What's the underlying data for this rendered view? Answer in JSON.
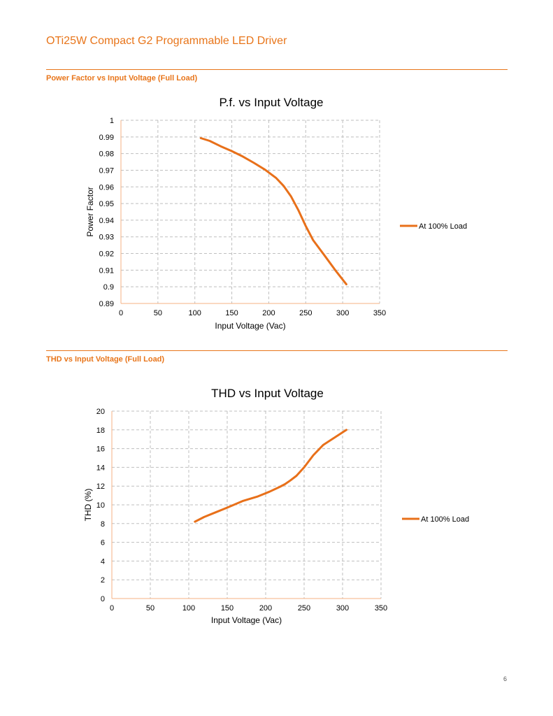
{
  "header": {
    "title": "OTi25W Compact G2 Programmable LED Driver"
  },
  "sections": [
    {
      "title": "Power Factor vs Input Voltage (Full Load)"
    },
    {
      "title": "THD vs Input Voltage (Full Load)"
    }
  ],
  "colors": {
    "accent": "#E8751A",
    "series": "#E8701A",
    "grid": "#BFBFBF",
    "axis": "#F4B183"
  },
  "chart_data": [
    {
      "type": "line",
      "title": "P.f. vs Input Voltage",
      "xlabel": "Input Voltage (Vac)",
      "ylabel": "Power Factor",
      "xlim": [
        0,
        350
      ],
      "ylim": [
        0.89,
        1
      ],
      "xticks": [
        0,
        50,
        100,
        150,
        200,
        250,
        300,
        350
      ],
      "yticks": [
        0.89,
        0.9,
        0.91,
        0.92,
        0.93,
        0.94,
        0.95,
        0.96,
        0.97,
        0.98,
        0.99,
        1
      ],
      "ytick_labels": [
        "0.89",
        "0.9",
        "0.91",
        "0.92",
        "0.93",
        "0.94",
        "0.95",
        "0.96",
        "0.97",
        "0.98",
        "0.99",
        "1"
      ],
      "grid": true,
      "legend_position": "right",
      "series": [
        {
          "name": "At 100% Load",
          "x": [
            108,
            120,
            135,
            150,
            165,
            180,
            195,
            210,
            220,
            230,
            240,
            250,
            260,
            275,
            290,
            305
          ],
          "y": [
            0.9893,
            0.9876,
            0.9844,
            0.9815,
            0.9782,
            0.9744,
            0.9703,
            0.9653,
            0.9606,
            0.9544,
            0.9461,
            0.9365,
            0.928,
            0.9191,
            0.91,
            0.9015
          ]
        }
      ]
    },
    {
      "type": "line",
      "title": "THD vs Input Voltage",
      "xlabel": "Input Voltage (Vac)",
      "ylabel": "THD (%)",
      "xlim": [
        0,
        350
      ],
      "ylim": [
        0,
        20
      ],
      "xticks": [
        0,
        50,
        100,
        150,
        200,
        250,
        300,
        350
      ],
      "yticks": [
        0,
        2,
        4,
        6,
        8,
        10,
        12,
        14,
        16,
        18,
        20
      ],
      "ytick_labels": [
        "0",
        "2",
        "4",
        "6",
        "8",
        "10",
        "12",
        "14",
        "16",
        "18",
        "20"
      ],
      "grid": true,
      "legend_position": "right",
      "series": [
        {
          "name": "At 100% Load",
          "x": [
            108,
            120,
            135,
            150,
            170,
            190,
            205,
            218,
            225,
            232,
            240,
            250,
            262,
            275,
            290,
            305
          ],
          "y": [
            8.2,
            8.7,
            9.2,
            9.7,
            10.4,
            10.9,
            11.4,
            11.9,
            12.2,
            12.6,
            13.1,
            14.0,
            15.3,
            16.4,
            17.2,
            18.0
          ]
        }
      ]
    }
  ],
  "footer": {
    "page_number": "6"
  }
}
